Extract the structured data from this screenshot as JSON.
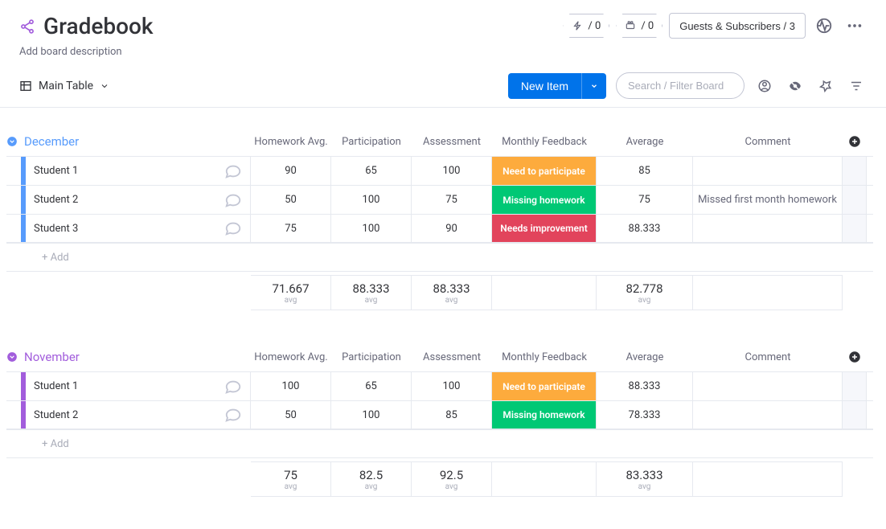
{
  "header": {
    "title": "Gradebook",
    "description": "Add board description",
    "automation_count": "/ 0",
    "integration_count": "/ 0",
    "guests_label": "Guests & Subscribers / 3"
  },
  "toolbar": {
    "view_label": "Main Table",
    "new_item_label": "New Item",
    "search_placeholder": "Search / Filter Board"
  },
  "colors": {
    "feedback_participate": "#fdab3d",
    "feedback_homework": "#00c875",
    "feedback_improvement": "#e2445c",
    "group_dec": "#579bfc",
    "group_nov": "#a25ddc"
  },
  "columns": {
    "homework": "Homework Avg.",
    "participation": "Participation",
    "assessment": "Assessment",
    "feedback": "Monthly Feedback",
    "average": "Average",
    "comment": "Comment"
  },
  "add_row_label": "+ Add",
  "avg_sub": "avg",
  "groups": {
    "december": {
      "title": "December",
      "rows": [
        {
          "name": "Student 1",
          "hw": "90",
          "part": "65",
          "assess": "100",
          "feedback": "Need to participate",
          "feedback_color": "#fdab3d",
          "avg": "85",
          "comment": ""
        },
        {
          "name": "Student 2",
          "hw": "50",
          "part": "100",
          "assess": "75",
          "feedback": "Missing homework",
          "feedback_color": "#00c875",
          "avg": "75",
          "comment": "Missed first month homework"
        },
        {
          "name": "Student 3",
          "hw": "75",
          "part": "100",
          "assess": "90",
          "feedback": "Needs improvement",
          "feedback_color": "#e2445c",
          "avg": "88.333",
          "comment": ""
        }
      ],
      "summary": {
        "hw": "71.667",
        "part": "88.333",
        "assess": "88.333",
        "avg": "82.778"
      }
    },
    "november": {
      "title": "November",
      "rows": [
        {
          "name": "Student 1",
          "hw": "100",
          "part": "65",
          "assess": "100",
          "feedback": "Need to participate",
          "feedback_color": "#fdab3d",
          "avg": "88.333",
          "comment": ""
        },
        {
          "name": "Student 2",
          "hw": "50",
          "part": "100",
          "assess": "85",
          "feedback": "Missing homework",
          "feedback_color": "#00c875",
          "avg": "78.333",
          "comment": ""
        }
      ],
      "summary": {
        "hw": "75",
        "part": "82.5",
        "assess": "92.5",
        "avg": "83.333"
      }
    }
  }
}
